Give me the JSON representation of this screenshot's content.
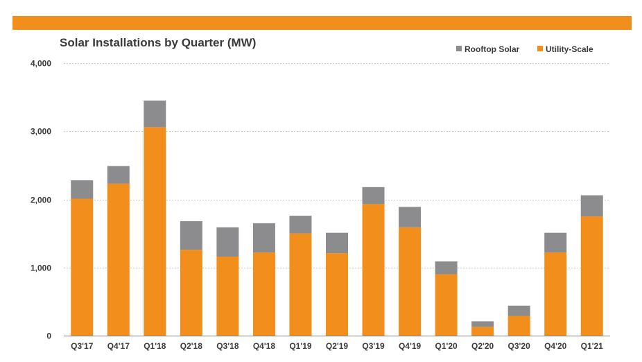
{
  "colors": {
    "accent_bar": "#f28e1c",
    "utility": "#f28e1c",
    "rooftop": "#8c8c8e"
  },
  "chart_data": {
    "type": "bar",
    "stacked": true,
    "title": "Solar Installations by Quarter (MW)",
    "xlabel": "",
    "ylabel": "",
    "ylim": [
      0,
      4000
    ],
    "yticks": [
      0,
      1000,
      2000,
      3000,
      4000
    ],
    "ytick_labels": [
      "0",
      "1,000",
      "2,000",
      "3,000",
      "4,000"
    ],
    "grid": true,
    "legend_position": "top-right",
    "categories": [
      "Q3'17",
      "Q4'17",
      "Q1'18",
      "Q2'18",
      "Q3'18",
      "Q4'18",
      "Q1'19",
      "Q2'19",
      "Q3'19",
      "Q4'19",
      "Q1'20",
      "Q2'20",
      "Q3'20",
      "Q4'20",
      "Q1'21"
    ],
    "series": [
      {
        "name": "Utility-Scale",
        "color": "#f28e1c",
        "values": [
          2010,
          2230,
          3060,
          1260,
          1160,
          1220,
          1500,
          1210,
          1930,
          1590,
          900,
          130,
          290,
          1220,
          1750
        ]
      },
      {
        "name": "Rooftop Solar",
        "color": "#8c8c8e",
        "values": [
          270,
          260,
          390,
          420,
          430,
          430,
          260,
          300,
          250,
          300,
          190,
          80,
          150,
          290,
          310
        ]
      }
    ],
    "legend": [
      "Rooftop Solar",
      "Utility-Scale"
    ]
  }
}
